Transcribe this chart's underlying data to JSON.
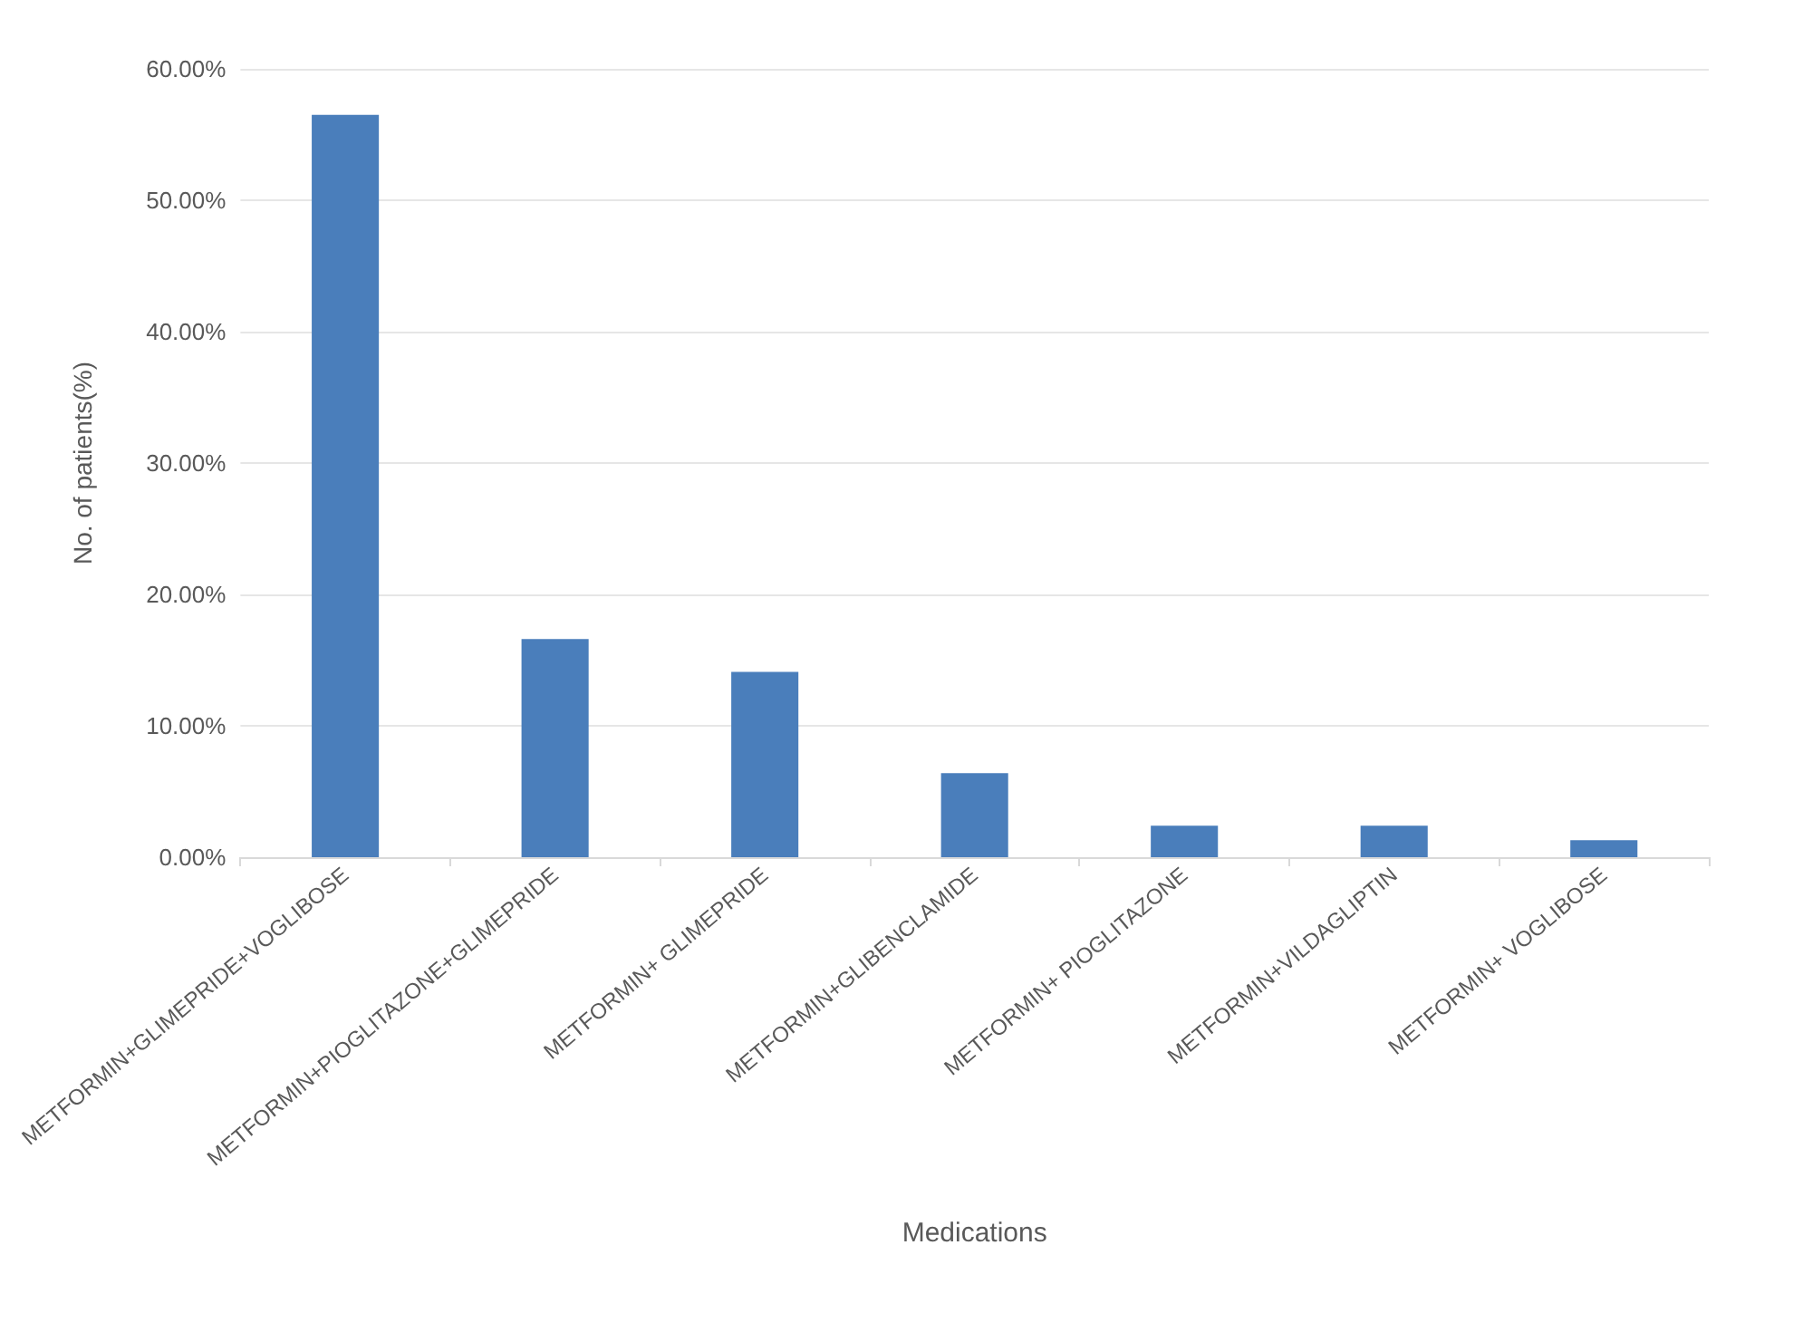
{
  "chart_data": {
    "type": "bar",
    "xlabel": "Medications",
    "ylabel": "No. of patients(%)",
    "categories": [
      "METFORMIN+GLIMEPRIDE+VOGLIBOSE",
      "METFORMIN+PIOGLITAZONE+GLIMEPRIDE",
      "METFORMIN+ GLIMEPRIDE",
      "METFORMIN+GLIBENCLAMIDE",
      "METFORMIN+ PIOGLITAZONE",
      "METFORMIN+VILDAGLIPTIN",
      "METFORMIN+ VOGLIBOSE"
    ],
    "values": [
      56.5,
      16.6,
      14.1,
      6.4,
      2.4,
      2.4,
      1.3
    ],
    "color": "#4a7ebb",
    "ylim": [
      0,
      60
    ],
    "yticks": [
      {
        "value": 0,
        "label": "0.00%"
      },
      {
        "value": 10,
        "label": "10.00%"
      },
      {
        "value": 20,
        "label": "20.00%"
      },
      {
        "value": 30,
        "label": "30.00%"
      },
      {
        "value": 40,
        "label": "40.00%"
      },
      {
        "value": 50,
        "label": "50.00%"
      },
      {
        "value": 60,
        "label": "60.00%"
      }
    ],
    "grid": "y"
  }
}
